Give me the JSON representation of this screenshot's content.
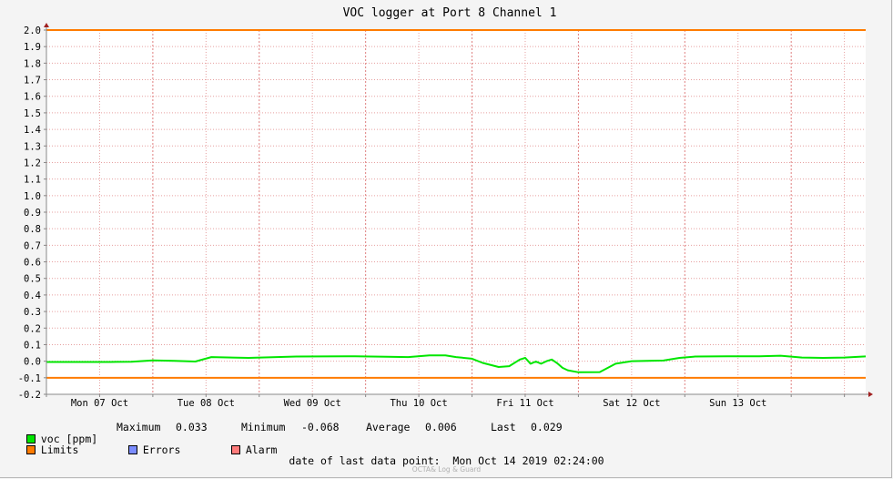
{
  "chart_data": {
    "type": "line",
    "title": "VOC logger at Port 8 Channel 1",
    "ylim": [
      -0.2,
      2.0
    ],
    "yticks": [
      "2.0",
      "1.9",
      "1.8",
      "1.7",
      "1.6",
      "1.5",
      "1.4",
      "1.3",
      "1.2",
      "1.1",
      "1.0",
      "0.9",
      "0.8",
      "0.7",
      "0.6",
      "0.5",
      "0.4",
      "0.3",
      "0.2",
      "0.1",
      "0.0",
      "-0.1",
      "-0.2"
    ],
    "xlim_days": [
      0,
      7.7
    ],
    "xlabels": [
      "Mon 07 Oct",
      "Tue 08 Oct",
      "Wed 09 Oct",
      "Thu 10 Oct",
      "Fri 11 Oct",
      "Sat 12 Oct",
      "Sun 13 Oct"
    ],
    "grid": true,
    "limits": {
      "upper": 2.0,
      "lower": -0.1
    },
    "series": [
      {
        "name": "voc [ppm]",
        "color": "#00e600",
        "x": [
          0,
          0.3,
          0.6,
          0.8,
          1.0,
          1.2,
          1.4,
          1.55,
          1.9,
          2.35,
          2.9,
          3.2,
          3.4,
          3.6,
          3.75,
          3.85,
          4.0,
          4.1,
          4.25,
          4.35,
          4.45,
          4.5,
          4.55,
          4.6,
          4.65,
          4.7,
          4.75,
          4.8,
          4.85,
          4.9,
          5.0,
          5.2,
          5.35,
          5.5,
          5.8,
          5.95,
          6.1,
          6.4,
          6.7,
          6.9,
          7.1,
          7.3,
          7.5,
          7.7
        ],
        "values": [
          -0.005,
          -0.005,
          -0.005,
          -0.003,
          0.005,
          0.002,
          -0.002,
          0.025,
          0.02,
          0.028,
          0.03,
          0.027,
          0.025,
          0.035,
          0.035,
          0.025,
          0.015,
          -0.01,
          -0.035,
          -0.03,
          0.01,
          0.02,
          -0.015,
          -0.002,
          -0.015,
          0.0,
          0.01,
          -0.012,
          -0.04,
          -0.055,
          -0.067,
          -0.066,
          -0.015,
          0.0,
          0.004,
          0.02,
          0.028,
          0.03,
          0.03,
          0.033,
          0.022,
          0.02,
          0.022,
          0.029
        ]
      }
    ]
  },
  "legend": {
    "voc": "voc [ppm]",
    "max_label": "Maximum",
    "max_value": "0.033",
    "min_label": "Minimum",
    "min_value": "-0.068",
    "avg_label": "Average",
    "avg_value": "0.006",
    "last_label": "Last",
    "last_value": "0.029",
    "limits": "Limits",
    "errors": "Errors",
    "alarm": "Alarm",
    "colors": {
      "voc": "#00e600",
      "limits": "#ff7b00",
      "errors": "#7b8cff",
      "alarm": "#ff7b7b"
    }
  },
  "footer": {
    "label": "date of last data point:",
    "value": "Mon Oct 14 2019 02:24:00"
  },
  "watermark": "OCTA& Log & Guard"
}
